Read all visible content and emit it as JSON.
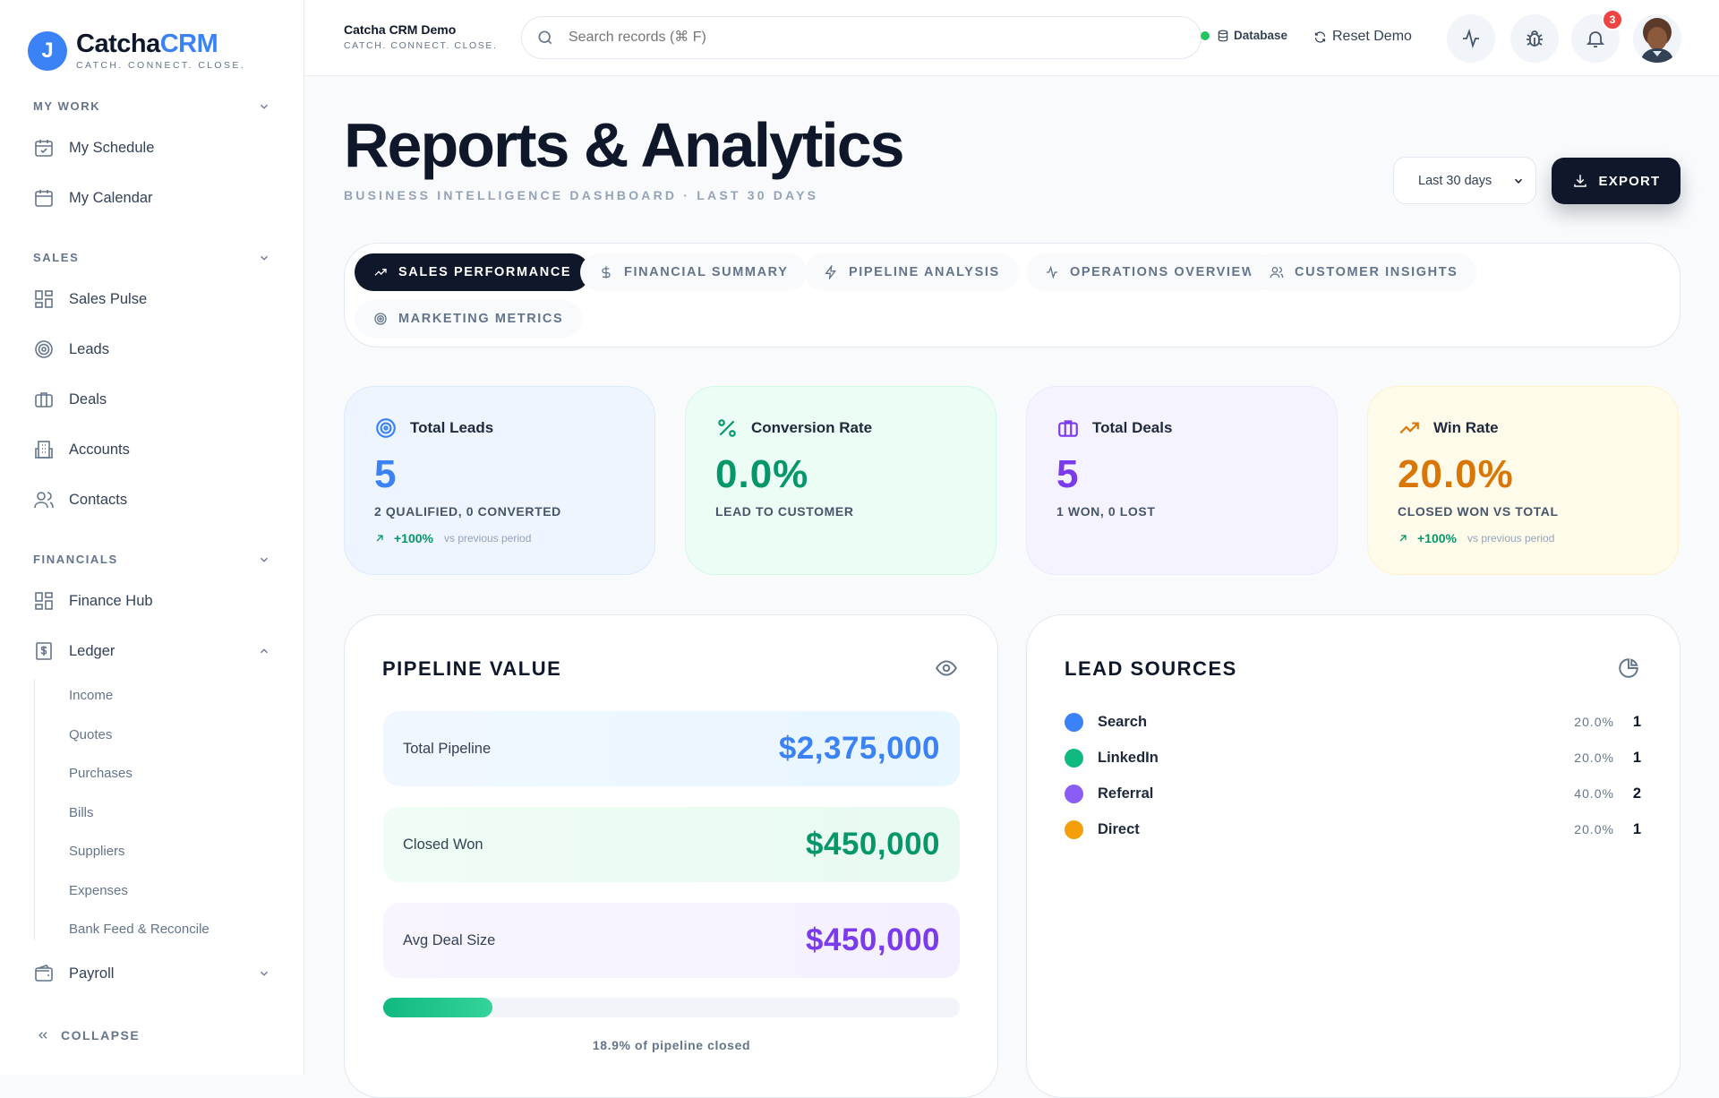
{
  "brand": {
    "initial": "J",
    "name_main": "Catcha",
    "name_accent": "CRM",
    "tagline": "CATCH. CONNECT. CLOSE."
  },
  "sidebar": {
    "sections": [
      {
        "title": "MY WORK",
        "items": [
          {
            "label": "My Schedule",
            "icon": "calendar-check-icon"
          },
          {
            "label": "My Calendar",
            "icon": "calendar-icon"
          }
        ]
      },
      {
        "title": "SALES",
        "items": [
          {
            "label": "Sales Pulse",
            "icon": "dashboard-icon"
          },
          {
            "label": "Leads",
            "icon": "target-icon"
          },
          {
            "label": "Deals",
            "icon": "briefcase-icon"
          },
          {
            "label": "Accounts",
            "icon": "building-icon"
          },
          {
            "label": "Contacts",
            "icon": "users-icon"
          }
        ]
      },
      {
        "title": "FINANCIALS",
        "items": [
          {
            "label": "Finance Hub",
            "icon": "dashboard-icon"
          },
          {
            "label": "Ledger",
            "icon": "ledger-icon"
          },
          {
            "label": "Payroll",
            "icon": "wallet-icon"
          }
        ]
      }
    ],
    "ledger_children": [
      "Income",
      "Quotes",
      "Purchases",
      "Bills",
      "Suppliers",
      "Expenses",
      "Bank Feed & Reconcile"
    ],
    "collapse_label": "COLLAPSE"
  },
  "topbar": {
    "org_name": "Catcha CRM Demo",
    "org_tagline": "CATCH. CONNECT. CLOSE.",
    "search_placeholder": "Search records (⌘ F)",
    "db_label": "Database",
    "db_status_color": "#22c55e",
    "reset_label": "Reset Demo",
    "notification_count": "3"
  },
  "page": {
    "title": "Reports & Analytics",
    "subtitle": "BUSINESS INTELLIGENCE DASHBOARD · LAST 30 DAYS",
    "range_selected": "Last 30 days",
    "export_label": "EXPORT"
  },
  "tabs": [
    {
      "label": "SALES PERFORMANCE",
      "icon": "trending-up-icon",
      "active": true
    },
    {
      "label": "FINANCIAL SUMMARY",
      "icon": "dollar-icon",
      "active": false
    },
    {
      "label": "PIPELINE ANALYSIS",
      "icon": "bolt-icon",
      "active": false
    },
    {
      "label": "OPERATIONS OVERVIEW",
      "icon": "activity-icon",
      "active": false
    },
    {
      "label": "CUSTOMER INSIGHTS",
      "icon": "users-icon",
      "active": false
    },
    {
      "label": "MARKETING METRICS",
      "icon": "target-icon",
      "active": false
    }
  ],
  "kpis": [
    {
      "title": "Total Leads",
      "value": "5",
      "sub": "2 QUALIFIED, 0 CONVERTED",
      "trend": "+100%",
      "trend_note": "vs previous period",
      "color": "#3b82f6"
    },
    {
      "title": "Conversion Rate",
      "value": "0.0%",
      "sub": "LEAD TO CUSTOMER",
      "color": "#059669"
    },
    {
      "title": "Total Deals",
      "value": "5",
      "sub": "1 WON, 0 LOST",
      "color": "#7c3aed"
    },
    {
      "title": "Win Rate",
      "value": "20.0%",
      "sub": "CLOSED WON VS TOTAL",
      "trend": "+100%",
      "trend_note": "vs previous period",
      "color": "#d97706"
    }
  ],
  "pipeline": {
    "title": "PIPELINE VALUE",
    "rows": [
      {
        "label": "Total Pipeline",
        "value": "$2,375,000",
        "color": "#3b82f6"
      },
      {
        "label": "Closed Won",
        "value": "$450,000",
        "color": "#059669"
      },
      {
        "label": "Avg Deal Size",
        "value": "$450,000",
        "color": "#7c3aed"
      }
    ],
    "closed_fraction": 0.189,
    "closed_caption": "18.9% of pipeline closed"
  },
  "lead_sources": {
    "title": "LEAD SOURCES",
    "rows": [
      {
        "name": "Search",
        "pct": "20.0%",
        "count": "1",
        "color": "#3b82f6"
      },
      {
        "name": "LinkedIn",
        "pct": "20.0%",
        "count": "1",
        "color": "#10b981"
      },
      {
        "name": "Referral",
        "pct": "40.0%",
        "count": "2",
        "color": "#8b5cf6"
      },
      {
        "name": "Direct",
        "pct": "20.0%",
        "count": "1",
        "color": "#f59e0b"
      }
    ]
  }
}
